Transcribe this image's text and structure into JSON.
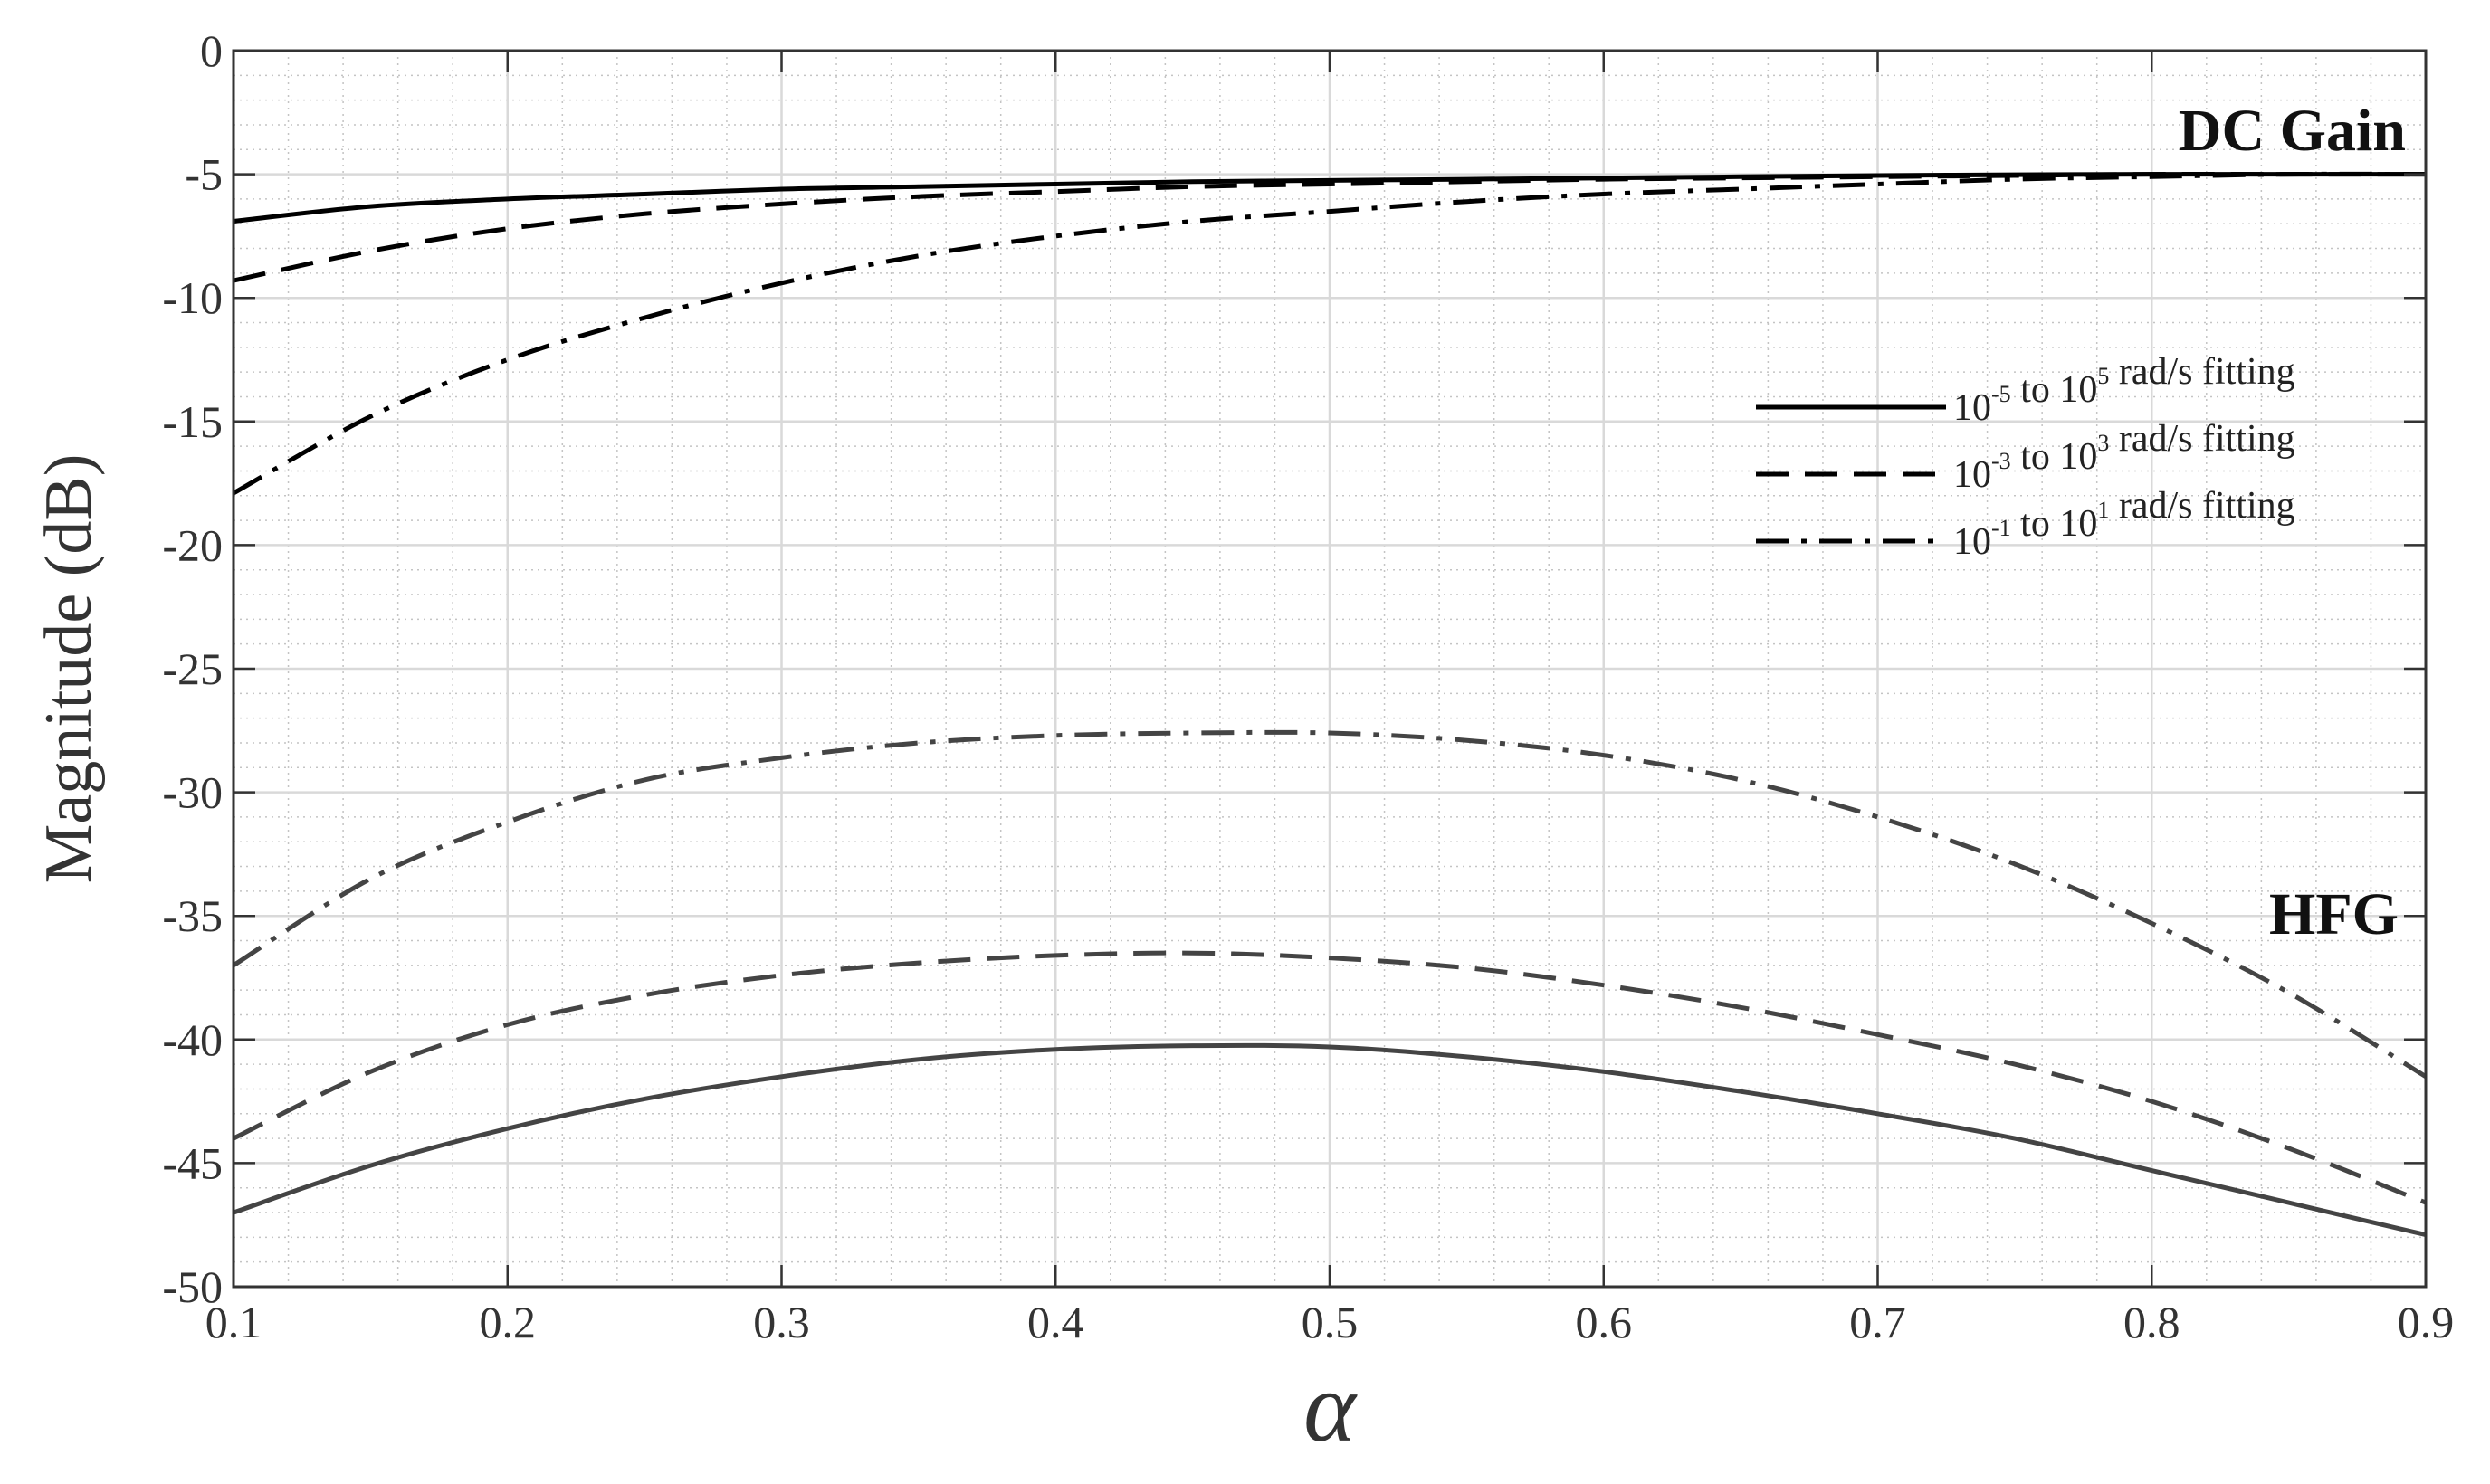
{
  "chart_data": {
    "type": "line",
    "xlabel": "α",
    "ylabel": "Magnitude (dB)",
    "xlim": [
      0.1,
      0.9
    ],
    "ylim": [
      -50,
      0
    ],
    "x_ticks": [
      "0.1",
      "0.2",
      "0.3",
      "0.4",
      "0.5",
      "0.6",
      "0.7",
      "0.8",
      "0.9"
    ],
    "y_ticks": [
      "0",
      "-5",
      "-10",
      "-15",
      "-20",
      "-25",
      "-30",
      "-35",
      "-40",
      "-45",
      "-50"
    ],
    "grid": true,
    "legend_position": "right",
    "annotations": {
      "dc": "DC Gain",
      "hfg": "HFG"
    },
    "legend": [
      {
        "base1": "10",
        "exp1": "-5",
        "mid": "to",
        "base2": "10",
        "exp2": "5",
        "tail": "rad/s fitting",
        "style": "solid"
      },
      {
        "base1": "10",
        "exp1": "-3",
        "mid": "to",
        "base2": "10",
        "exp2": "3",
        "tail": "rad/s fitting",
        "style": "dashed"
      },
      {
        "base1": "10",
        "exp1": "-1",
        "mid": "to",
        "base2": "10",
        "exp2": "1",
        "tail": "rad/s fitting",
        "style": "dashdot"
      }
    ],
    "x": [
      0.1,
      0.15,
      0.2,
      0.25,
      0.3,
      0.35,
      0.4,
      0.45,
      0.5,
      0.55,
      0.6,
      0.65,
      0.7,
      0.75,
      0.8,
      0.85,
      0.9
    ],
    "series": [
      {
        "group": "DC Gain",
        "style": "solid",
        "color": "#000000",
        "values": [
          -6.9,
          -6.3,
          -6.0,
          -5.8,
          -5.6,
          -5.5,
          -5.4,
          -5.3,
          -5.25,
          -5.2,
          -5.15,
          -5.1,
          -5.05,
          -5.02,
          -5.0,
          -5.0,
          -5.0
        ]
      },
      {
        "group": "DC Gain",
        "style": "dashed",
        "color": "#000000",
        "values": [
          -9.3,
          -8.1,
          -7.2,
          -6.6,
          -6.2,
          -5.9,
          -5.7,
          -5.5,
          -5.4,
          -5.3,
          -5.2,
          -5.15,
          -5.1,
          -5.05,
          -5.0,
          -5.0,
          -5.0
        ]
      },
      {
        "group": "DC Gain",
        "style": "dashdot",
        "color": "#000000",
        "values": [
          -17.9,
          -14.8,
          -12.5,
          -10.8,
          -9.4,
          -8.3,
          -7.5,
          -6.9,
          -6.5,
          -6.1,
          -5.8,
          -5.6,
          -5.4,
          -5.2,
          -5.1,
          -5.0,
          -5.0
        ]
      },
      {
        "group": "HFG",
        "style": "solid",
        "color": "#444444",
        "values": [
          -47.0,
          -45.1,
          -43.6,
          -42.4,
          -41.5,
          -40.8,
          -40.4,
          -40.25,
          -40.3,
          -40.7,
          -41.3,
          -42.1,
          -43.0,
          -44.0,
          -45.3,
          -46.6,
          -47.9
        ]
      },
      {
        "group": "HFG",
        "style": "dashed",
        "color": "#444444",
        "values": [
          -44.0,
          -41.3,
          -39.4,
          -38.2,
          -37.4,
          -36.9,
          -36.6,
          -36.5,
          -36.7,
          -37.1,
          -37.8,
          -38.7,
          -39.8,
          -41.0,
          -42.5,
          -44.4,
          -46.6
        ]
      },
      {
        "group": "HFG",
        "style": "dashdot",
        "color": "#444444",
        "values": [
          -37.0,
          -33.5,
          -31.2,
          -29.5,
          -28.6,
          -28.0,
          -27.7,
          -27.6,
          -27.6,
          -27.9,
          -28.5,
          -29.5,
          -31.0,
          -32.9,
          -35.3,
          -38.1,
          -41.5
        ]
      }
    ]
  }
}
